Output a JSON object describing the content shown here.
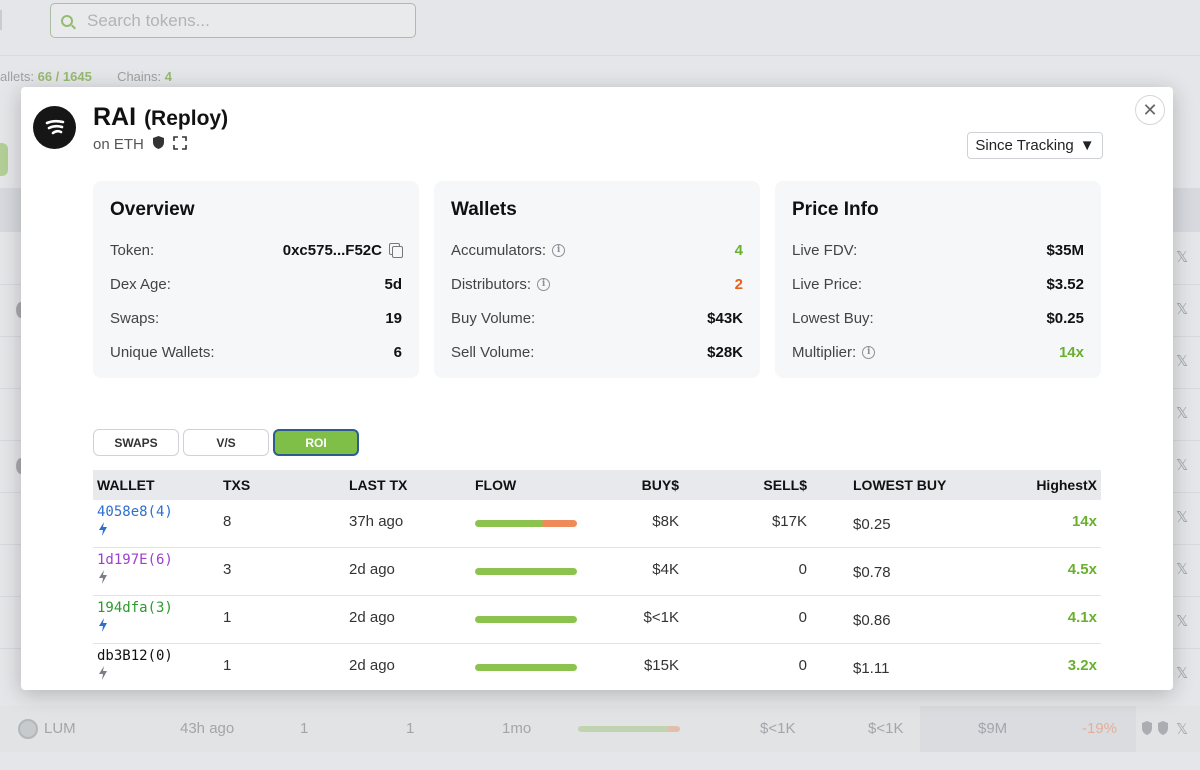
{
  "background": {
    "search_placeholder": "Search tokens...",
    "stats": {
      "wallets_label": "allets:",
      "wallets_value": "66 / 1645",
      "chains_label": "Chains:",
      "chains_value": "4"
    },
    "row": {
      "name": "LUM",
      "last_tx": "43h ago",
      "c1": "1",
      "c2": "1",
      "age": "1mo",
      "buy": "$<1K",
      "sell": "$<1K",
      "fdv": "$9M",
      "change": "-19%"
    },
    "row_x_icon": "x-icon"
  },
  "modal": {
    "name": "RAI",
    "subtitle": "(Reploy)",
    "chain": "on ETH",
    "range": "Since Tracking",
    "close_symbol": "✕",
    "overview": {
      "title": "Overview",
      "token_label": "Token:",
      "token_value": "0xc575...F52C",
      "dex_age_label": "Dex Age:",
      "dex_age_value": "5d",
      "swaps_label": "Swaps:",
      "swaps_value": "19",
      "unique_label": "Unique Wallets:",
      "unique_value": "6"
    },
    "wallets": {
      "title": "Wallets",
      "acc_label": "Accumulators:",
      "acc_value": "4",
      "dist_label": "Distributors:",
      "dist_value": "2",
      "buy_label": "Buy Volume:",
      "buy_value": "$43K",
      "sell_label": "Sell Volume:",
      "sell_value": "$28K"
    },
    "price": {
      "title": "Price Info",
      "fdv_label": "Live FDV:",
      "fdv_value": "$35M",
      "price_label": "Live Price:",
      "price_value": "$3.52",
      "lowest_label": "Lowest Buy:",
      "lowest_value": "$0.25",
      "mult_label": "Multiplier:",
      "mult_value": "14x"
    },
    "tabs": [
      "SWAPS",
      "V/S",
      "ROI"
    ],
    "table": {
      "headers": {
        "wallet": "WALLET",
        "txs": "TXS",
        "last_tx": "LAST TX",
        "flow": "FLOW",
        "buy": "BUY$",
        "sell": "SELL$",
        "lowest": "LOWEST BUY",
        "highest": "HighestX"
      },
      "rows": [
        {
          "wallet": "4058e8(4)",
          "wallet_color": "#2f6fce",
          "bolt_color": "#2f6fce",
          "txs": "8",
          "last_tx": "37h ago",
          "buy_fraction": 0.66,
          "buy": "$8K",
          "sell": "$17K",
          "lowest": "$0.25",
          "highest": "14x"
        },
        {
          "wallet": "1d197E(6)",
          "wallet_color": "#9b3fd0",
          "bolt_color": "#7d7f86",
          "txs": "3",
          "last_tx": "2d ago",
          "buy_fraction": 1.0,
          "buy": "$4K",
          "sell": "0",
          "lowest": "$0.78",
          "highest": "4.5x"
        },
        {
          "wallet": "194dfa(3)",
          "wallet_color": "#2c9a2c",
          "bolt_color": "#2f6fce",
          "txs": "1",
          "last_tx": "2d ago",
          "buy_fraction": 1.0,
          "buy": "$<1K",
          "sell": "0",
          "lowest": "$0.86",
          "highest": "4.1x"
        },
        {
          "wallet": "db3B12(0)",
          "wallet_color": "#111111",
          "bolt_color": "#7d7f86",
          "txs": "1",
          "last_tx": "2d ago",
          "buy_fraction": 1.0,
          "buy": "$15K",
          "sell": "0",
          "lowest": "$1.11",
          "highest": "3.2x"
        }
      ]
    }
  },
  "colors": {
    "accent_green": "#6ab02e",
    "flow_buy": "#8cc34f",
    "flow_sell": "#ef8a5a",
    "tab_active": "#7fbf47"
  }
}
